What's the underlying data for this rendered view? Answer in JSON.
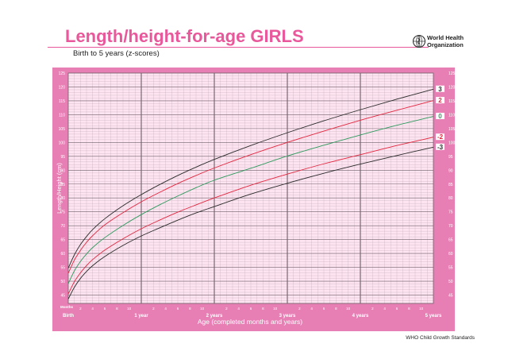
{
  "header": {
    "title": "Length/height-for-age GIRLS",
    "subtitle": "Birth to 5 years (z-scores)",
    "org_name": "World Health Organization"
  },
  "footer": {
    "text": "WHO Child Growth Standards"
  },
  "colors": {
    "frame": "#e77fb4",
    "plot_bg": "#fde4f0",
    "grid_minor": "#bfa9b6",
    "grid_major": "#6e5f68",
    "sd3": "#2b2b2b",
    "sd2": "#e3263f",
    "median": "#2e9a5e",
    "title": "#e8589a"
  },
  "chart_data": {
    "type": "line",
    "title": "Length/height-for-age GIRLS",
    "subtitle": "Birth to 5 years (z-scores)",
    "xlabel": "Age (completed months and years)",
    "ylabel": "Length/Height (cm)",
    "xlim": [
      0,
      60
    ],
    "ylim": [
      42,
      125
    ],
    "x_unit_label": "Months",
    "x_tick_labels": [
      {
        "x": 0,
        "label": "Birth"
      },
      {
        "x": 2,
        "label": "2"
      },
      {
        "x": 4,
        "label": "4"
      },
      {
        "x": 6,
        "label": "6"
      },
      {
        "x": 8,
        "label": "8"
      },
      {
        "x": 10,
        "label": "10"
      },
      {
        "x": 12,
        "label": "1 year"
      },
      {
        "x": 14,
        "label": "2"
      },
      {
        "x": 16,
        "label": "4"
      },
      {
        "x": 18,
        "label": "6"
      },
      {
        "x": 20,
        "label": "8"
      },
      {
        "x": 22,
        "label": "10"
      },
      {
        "x": 24,
        "label": "2 years"
      },
      {
        "x": 26,
        "label": "2"
      },
      {
        "x": 28,
        "label": "4"
      },
      {
        "x": 30,
        "label": "6"
      },
      {
        "x": 32,
        "label": "8"
      },
      {
        "x": 34,
        "label": "10"
      },
      {
        "x": 36,
        "label": "3 years"
      },
      {
        "x": 38,
        "label": "2"
      },
      {
        "x": 40,
        "label": "4"
      },
      {
        "x": 42,
        "label": "6"
      },
      {
        "x": 44,
        "label": "8"
      },
      {
        "x": 46,
        "label": "10"
      },
      {
        "x": 48,
        "label": "4 years"
      },
      {
        "x": 50,
        "label": "2"
      },
      {
        "x": 52,
        "label": "4"
      },
      {
        "x": 54,
        "label": "6"
      },
      {
        "x": 56,
        "label": "8"
      },
      {
        "x": 58,
        "label": "10"
      },
      {
        "x": 60,
        "label": "5 years"
      }
    ],
    "y_ticks": [
      45,
      50,
      55,
      60,
      65,
      70,
      75,
      80,
      85,
      90,
      95,
      100,
      105,
      110,
      115,
      120,
      125
    ],
    "x_major_lines": [
      12,
      24,
      36,
      48
    ],
    "y_major_lines": [
      45,
      50,
      55,
      60,
      65,
      70,
      75,
      80,
      85,
      90,
      95,
      100,
      105,
      110,
      115,
      120
    ],
    "grid": true,
    "x": [
      0,
      1,
      2,
      3,
      4,
      6,
      9,
      12,
      15,
      18,
      21,
      24,
      30,
      36,
      42,
      48,
      54,
      60
    ],
    "series": [
      {
        "name": "3",
        "color": "#2b2b2b",
        "values": [
          54.7,
          59.5,
          63.2,
          66.1,
          68.6,
          72.5,
          77.2,
          81.2,
          84.8,
          88.1,
          91.1,
          93.9,
          98.9,
          103.5,
          107.8,
          111.8,
          115.6,
          119.2
        ]
      },
      {
        "name": "2",
        "color": "#e3263f",
        "values": [
          52.9,
          57.6,
          61.1,
          64.0,
          66.4,
          70.3,
          74.7,
          78.6,
          82.0,
          85.2,
          88.1,
          90.8,
          95.6,
          100.0,
          104.1,
          108.0,
          111.6,
          115.1
        ]
      },
      {
        "name": "0",
        "color": "#2e9a5e",
        "values": [
          49.1,
          53.7,
          57.1,
          59.8,
          62.1,
          65.7,
          70.1,
          74.0,
          77.5,
          80.7,
          83.7,
          86.4,
          90.7,
          95.1,
          99.0,
          102.7,
          106.2,
          109.4
        ]
      },
      {
        "name": "-2",
        "color": "#e3263f",
        "values": [
          45.4,
          49.8,
          53.0,
          55.6,
          57.8,
          61.2,
          65.3,
          68.9,
          72.0,
          74.9,
          77.5,
          80.0,
          84.6,
          88.6,
          92.3,
          95.6,
          98.9,
          101.9
        ]
      },
      {
        "name": "-3",
        "color": "#2b2b2b",
        "values": [
          43.6,
          47.8,
          51.0,
          53.5,
          55.6,
          58.9,
          62.9,
          66.3,
          69.2,
          72.0,
          74.6,
          76.9,
          81.4,
          85.3,
          88.9,
          92.2,
          95.3,
          98.3
        ]
      }
    ]
  }
}
